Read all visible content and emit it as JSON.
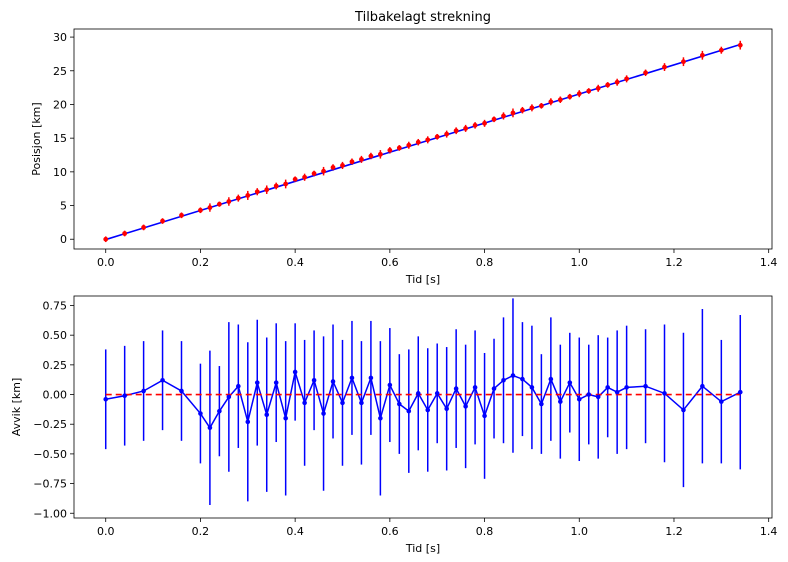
{
  "chart_data": [
    {
      "type": "scatter",
      "title": "Tilbakelagt strekning",
      "xlabel": "Tid [s]",
      "ylabel": "Posisjon [km]",
      "xlim": [
        -0.067,
        1.407
      ],
      "ylim": [
        -1.45,
        31.2
      ],
      "xticks": [
        0.0,
        0.2,
        0.4,
        0.6,
        0.8,
        1.0,
        1.2,
        1.4
      ],
      "xtick_labels": [
        "0.0",
        "0.2",
        "0.4",
        "0.6",
        "0.8",
        "1.0",
        "1.2",
        "1.4"
      ],
      "yticks": [
        0,
        5,
        10,
        15,
        20,
        25,
        30
      ],
      "ytick_labels": [
        "0",
        "5",
        "10",
        "15",
        "20",
        "25",
        "30"
      ],
      "grid": false,
      "series": [
        {
          "role": "measured-points-with-error-bars",
          "color": "#ff0000",
          "x": [
            0.0,
            0.04,
            0.08,
            0.12,
            0.16,
            0.2,
            0.22,
            0.24,
            0.26,
            0.28,
            0.3,
            0.32,
            0.34,
            0.36,
            0.38,
            0.4,
            0.42,
            0.44,
            0.46,
            0.48,
            0.5,
            0.52,
            0.54,
            0.56,
            0.58,
            0.6,
            0.62,
            0.64,
            0.66,
            0.68,
            0.7,
            0.72,
            0.74,
            0.76,
            0.78,
            0.8,
            0.82,
            0.84,
            0.86,
            0.88,
            0.9,
            0.92,
            0.94,
            0.96,
            0.98,
            1.0,
            1.02,
            1.04,
            1.06,
            1.08,
            1.1,
            1.14,
            1.18,
            1.22,
            1.26,
            1.3,
            1.34
          ],
          "y": [
            0.0,
            0.85,
            1.75,
            2.7,
            3.55,
            4.3,
            4.7,
            5.2,
            5.6,
            6.1,
            6.5,
            7.05,
            7.35,
            7.9,
            8.2,
            8.9,
            9.2,
            9.75,
            10.1,
            10.65,
            10.95,
            11.5,
            11.85,
            12.35,
            12.6,
            13.2,
            13.55,
            13.95,
            14.4,
            14.75,
            15.2,
            15.6,
            16.1,
            16.45,
            16.9,
            17.2,
            17.8,
            18.3,
            18.75,
            19.15,
            19.5,
            19.8,
            20.4,
            20.7,
            21.15,
            21.6,
            22.0,
            22.4,
            22.9,
            23.3,
            23.8,
            24.7,
            25.55,
            26.35,
            27.3,
            28.05,
            28.8
          ],
          "y_error": [
            0.42,
            0.42,
            0.42,
            0.42,
            0.42,
            0.42,
            0.62,
            0.38,
            0.63,
            0.52,
            0.67,
            0.53,
            0.63,
            0.5,
            0.65,
            0.42,
            0.53,
            0.42,
            0.63,
            0.48,
            0.53,
            0.48,
            0.52,
            0.48,
            0.63,
            0.48,
            0.42,
            0.52,
            0.48,
            0.52,
            0.42,
            0.52,
            0.5,
            0.52,
            0.48,
            0.52,
            0.42,
            0.53,
            0.65,
            0.48,
            0.52,
            0.42,
            0.52,
            0.48,
            0.42,
            0.52,
            0.42,
            0.52,
            0.42,
            0.52,
            0.52,
            0.48,
            0.58,
            0.65,
            0.65,
            0.52,
            0.65
          ]
        },
        {
          "role": "fitted-line",
          "color": "#0000ff",
          "x": [
            0.0,
            1.34
          ],
          "y": [
            -0.05,
            28.9
          ]
        }
      ]
    },
    {
      "type": "line",
      "title": "",
      "xlabel": "Tid [s]",
      "ylabel": "Avvik [km]",
      "xlim": [
        -0.067,
        1.407
      ],
      "ylim": [
        -1.04,
        0.83
      ],
      "xticks": [
        0.0,
        0.2,
        0.4,
        0.6,
        0.8,
        1.0,
        1.2,
        1.4
      ],
      "xtick_labels": [
        "0.0",
        "0.2",
        "0.4",
        "0.6",
        "0.8",
        "1.0",
        "1.2",
        "1.4"
      ],
      "yticks": [
        -1.0,
        -0.75,
        -0.5,
        -0.25,
        0.0,
        0.25,
        0.5,
        0.75
      ],
      "ytick_labels": [
        "−1.00",
        "−0.75",
        "−0.50",
        "−0.25",
        "0.00",
        "0.25",
        "0.50",
        "0.75"
      ],
      "grid": false,
      "series": [
        {
          "role": "residuals-with-error-bars",
          "color": "#0000ff",
          "x": [
            0.0,
            0.04,
            0.08,
            0.12,
            0.16,
            0.2,
            0.22,
            0.24,
            0.26,
            0.28,
            0.3,
            0.32,
            0.34,
            0.36,
            0.38,
            0.4,
            0.42,
            0.44,
            0.46,
            0.48,
            0.5,
            0.52,
            0.54,
            0.56,
            0.58,
            0.6,
            0.62,
            0.64,
            0.66,
            0.68,
            0.7,
            0.72,
            0.74,
            0.76,
            0.78,
            0.8,
            0.82,
            0.84,
            0.86,
            0.88,
            0.9,
            0.92,
            0.94,
            0.96,
            0.98,
            1.0,
            1.02,
            1.04,
            1.06,
            1.08,
            1.1,
            1.14,
            1.18,
            1.22,
            1.26,
            1.3,
            1.34
          ],
          "y": [
            -0.04,
            -0.01,
            0.03,
            0.12,
            0.03,
            -0.16,
            -0.28,
            -0.14,
            -0.02,
            0.07,
            -0.23,
            0.1,
            -0.17,
            0.1,
            -0.2,
            0.19,
            -0.07,
            0.12,
            -0.16,
            0.11,
            -0.07,
            0.14,
            -0.07,
            0.14,
            -0.2,
            0.08,
            -0.08,
            -0.14,
            0.01,
            -0.13,
            0.01,
            -0.12,
            0.05,
            -0.1,
            0.06,
            -0.18,
            0.05,
            0.12,
            0.16,
            0.13,
            0.06,
            -0.08,
            0.13,
            -0.06,
            0.1,
            -0.04,
            0.0,
            -0.02,
            0.06,
            0.02,
            0.06,
            0.07,
            0.01,
            -0.13,
            0.07,
            -0.06,
            0.02
          ],
          "y_error": [
            0.42,
            0.42,
            0.42,
            0.42,
            0.42,
            0.42,
            0.65,
            0.38,
            0.63,
            0.52,
            0.67,
            0.53,
            0.65,
            0.5,
            0.65,
            0.41,
            0.53,
            0.42,
            0.65,
            0.48,
            0.53,
            0.48,
            0.52,
            0.48,
            0.65,
            0.48,
            0.42,
            0.52,
            0.48,
            0.52,
            0.42,
            0.52,
            0.5,
            0.52,
            0.48,
            0.53,
            0.42,
            0.53,
            0.65,
            0.48,
            0.52,
            0.42,
            0.52,
            0.48,
            0.42,
            0.52,
            0.42,
            0.52,
            0.42,
            0.52,
            0.52,
            0.48,
            0.58,
            0.65,
            0.65,
            0.52,
            0.65
          ]
        },
        {
          "role": "zero-reference-line",
          "color": "#ff0000",
          "style": "dashed",
          "x": [
            0.0,
            1.34
          ],
          "y": [
            0.0,
            0.0
          ]
        }
      ]
    }
  ]
}
